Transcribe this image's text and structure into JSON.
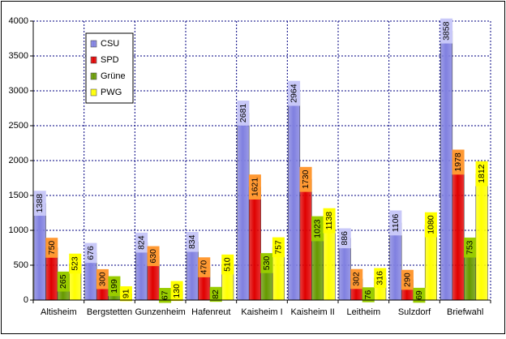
{
  "chart_data": {
    "type": "bar",
    "categories": [
      "Altisheim",
      "Bergstetten",
      "Gunzenheim",
      "Hafenreut",
      "Kaisheim I",
      "Kaisheim II",
      "Leitheim",
      "Sulzdorf",
      "Briefwahl"
    ],
    "series": [
      {
        "name": "CSU",
        "color": "#8080e0",
        "label_bg": "#c8c8f8",
        "values": [
          1388,
          676,
          824,
          834,
          2681,
          2964,
          886,
          1106,
          3858
        ]
      },
      {
        "name": "SPD",
        "color": "#e00000",
        "label_bg": "#ff9933",
        "values": [
          750,
          300,
          630,
          470,
          1621,
          1730,
          302,
          290,
          1978
        ]
      },
      {
        "name": "Grüne",
        "color": "#669900",
        "label_bg": "#99cc00",
        "values": [
          265,
          199,
          67,
          82,
          530,
          1023,
          76,
          69,
          753
        ]
      },
      {
        "name": "PWG",
        "color": "#ffff00",
        "label_bg": "#ffff00",
        "values": [
          523,
          91,
          130,
          510,
          757,
          1138,
          316,
          1080,
          1812
        ]
      }
    ],
    "ylim": [
      0,
      4000
    ],
    "yticks": [
      "0",
      "500",
      "1000",
      "1500",
      "2000",
      "2500",
      "3000",
      "3500",
      "4000"
    ],
    "grid": true,
    "legend_position": "top-left",
    "data_labels": true
  }
}
